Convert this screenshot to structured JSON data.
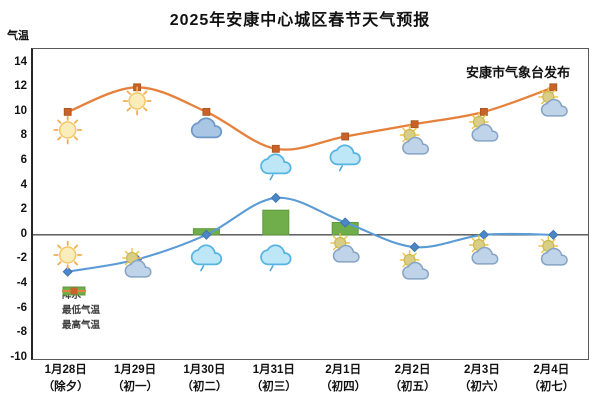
{
  "title": "2025年安康中心城区春节天气预报",
  "axis_label": "气温",
  "publisher": "安康市气象台发布",
  "legend": {
    "precip": "降水",
    "min_temp": "最低气温",
    "max_temp": "最高气温"
  },
  "y_ticks": [
    "14",
    "12",
    "10",
    "8",
    "6",
    "4",
    "2",
    "0",
    "-2",
    "-4",
    "-6",
    "-8",
    "-10"
  ],
  "x_labels": [
    {
      "date": "1月28日",
      "festival": "（除夕）"
    },
    {
      "date": "1月29日",
      "festival": "（初一）"
    },
    {
      "date": "1月30日",
      "festival": "（初二）"
    },
    {
      "date": "1月31日",
      "festival": "（初三）"
    },
    {
      "date": "2月1日",
      "festival": "（初四）"
    },
    {
      "date": "2月2日",
      "festival": "（初五）"
    },
    {
      "date": "2月3日",
      "festival": "（初六）"
    },
    {
      "date": "2月4日",
      "festival": "（初七）"
    }
  ],
  "colors": {
    "max_temp_line": "#E5813C",
    "max_temp_marker": "#C8622A",
    "min_temp_line": "#5B9BD5",
    "min_temp_marker": "#4A86C8",
    "precip_bar": "#6FAE4A",
    "precip_bar_border": "#5E9A3C",
    "zero_line": "#4d4d4d",
    "sun_fill": "#FBEDBB",
    "sun_stroke": "#F3C666",
    "sun_ray": "#F0AE4E",
    "overcast_cloud_fill": "#A9C6E4",
    "overcast_cloud_stroke": "#6E98C8",
    "rain_cloud_fill": "#BDE6F6",
    "rain_cloud_stroke": "#56B4E3",
    "partly_cloud_fill": "#BFD3E9",
    "partly_cloud_stroke": "#87A3C4",
    "partly_sun_fill": "#D9CE83"
  },
  "chart_data": {
    "type": "bar+line combo",
    "title": "2025年安康中心城区春节天气预报",
    "ylabel": "气温",
    "ylim": [
      -10,
      15
    ],
    "grid": false,
    "legend_position": "inside lower-left",
    "categories": [
      "1月28日(除夕)",
      "1月29日(初一)",
      "1月30日(初二)",
      "1月31日(初三)",
      "2月1日(初四)",
      "2月2日(初五)",
      "2月3日(初六)",
      "2月4日(初七)"
    ],
    "series": [
      {
        "name": "降水",
        "type": "bar",
        "marker": "none",
        "values": [
          0,
          0,
          0.5,
          2,
          1,
          0,
          0,
          0
        ]
      },
      {
        "name": "最低气温",
        "type": "line",
        "marker": "diamond",
        "values": [
          -3,
          -2,
          0,
          3,
          1,
          -1,
          0,
          0
        ]
      },
      {
        "name": "最高气温",
        "type": "line",
        "marker": "square",
        "values": [
          10,
          12,
          10,
          7,
          8,
          9,
          10,
          12
        ]
      }
    ],
    "day_weather_icons": [
      "sun",
      "sun",
      "cloud",
      "rain",
      "rain",
      "sun-cloud",
      "sun-cloud",
      "sun-cloud"
    ],
    "night_weather_icons": [
      "sun",
      "sun-cloud",
      "rain",
      "rain",
      "sun-cloud",
      "sun-cloud",
      "sun-cloud",
      "sun-cloud"
    ]
  }
}
